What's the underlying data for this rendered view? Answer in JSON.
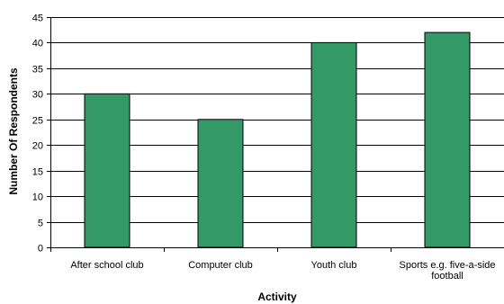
{
  "chart_data": {
    "type": "bar",
    "title": "",
    "xlabel": "Activity",
    "ylabel": "Number Of Respondents",
    "categories": [
      "After school club",
      "Computer club",
      "Youth club",
      "Sports e.g. five-a-side football"
    ],
    "category_lines": [
      [
        "After school club"
      ],
      [
        "Computer club"
      ],
      [
        "Youth club"
      ],
      [
        "Sports e.g. five-a-side",
        "football"
      ]
    ],
    "values": [
      30,
      25,
      40,
      42
    ],
    "ylim": [
      0,
      45
    ],
    "yticks": [
      0,
      5,
      10,
      15,
      20,
      25,
      30,
      35,
      40,
      45
    ],
    "grid": true,
    "legend": "none",
    "colors": {
      "bar": "#339966",
      "bar_stroke": "#000000",
      "grid": "#000000",
      "axis": "#000000"
    }
  }
}
